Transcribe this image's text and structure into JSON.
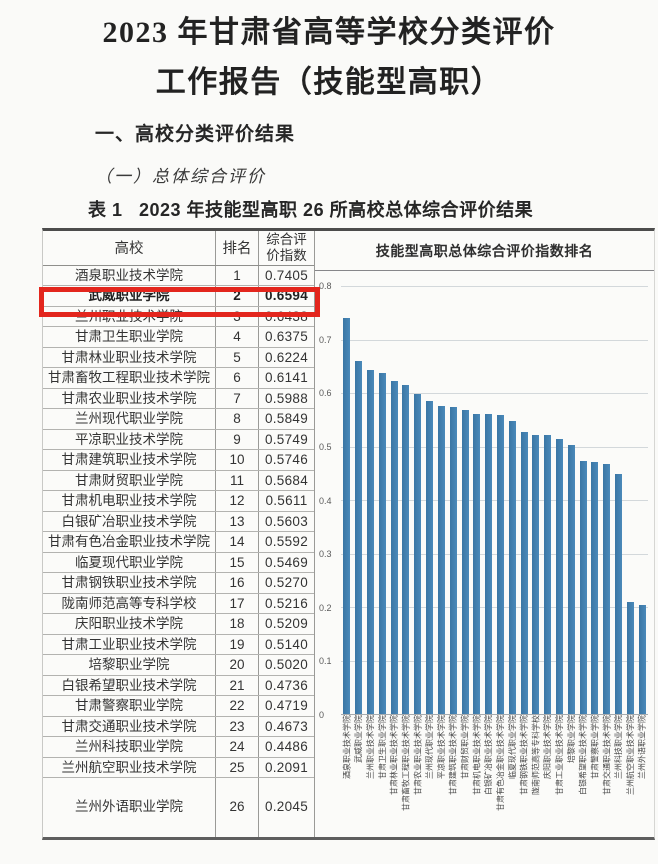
{
  "page": {
    "title_line1": "2023 年甘肃省高等学校分类评价",
    "title_line2": "工作报告（技能型高职）",
    "section_heading": "一、高校分类评价结果",
    "subsection_heading": "（一）总体综合评价",
    "table_caption": "表 1   2023 年技能型高职 26 所高校总体综合评价结果"
  },
  "table": {
    "headers": {
      "college": "高校",
      "rank": "排名",
      "index_line1": "综合评",
      "index_line2": "价指数"
    },
    "highlight_rank": 2,
    "highlight_color": "#e3261d",
    "rows": [
      {
        "college": "酒泉职业技术学院",
        "rank": 1,
        "index": "0.7405"
      },
      {
        "college": "武威职业学院",
        "rank": 2,
        "index": "0.6594"
      },
      {
        "college": "兰州职业技术学院",
        "rank": 3,
        "index": "0.6438"
      },
      {
        "college": "甘肃卫生职业学院",
        "rank": 4,
        "index": "0.6375"
      },
      {
        "college": "甘肃林业职业技术学院",
        "rank": 5,
        "index": "0.6224"
      },
      {
        "college": "甘肃畜牧工程职业技术学院",
        "rank": 6,
        "index": "0.6141"
      },
      {
        "college": "甘肃农业职业技术学院",
        "rank": 7,
        "index": "0.5988"
      },
      {
        "college": "兰州现代职业学院",
        "rank": 8,
        "index": "0.5849"
      },
      {
        "college": "平凉职业技术学院",
        "rank": 9,
        "index": "0.5749"
      },
      {
        "college": "甘肃建筑职业技术学院",
        "rank": 10,
        "index": "0.5746"
      },
      {
        "college": "甘肃财贸职业学院",
        "rank": 11,
        "index": "0.5684"
      },
      {
        "college": "甘肃机电职业技术学院",
        "rank": 12,
        "index": "0.5611"
      },
      {
        "college": "白银矿冶职业技术学院",
        "rank": 13,
        "index": "0.5603"
      },
      {
        "college": "甘肃有色冶金职业技术学院",
        "rank": 14,
        "index": "0.5592"
      },
      {
        "college": "临夏现代职业学院",
        "rank": 15,
        "index": "0.5469"
      },
      {
        "college": "甘肃钢铁职业技术学院",
        "rank": 16,
        "index": "0.5270"
      },
      {
        "college": "陇南师范高等专科学校",
        "rank": 17,
        "index": "0.5216"
      },
      {
        "college": "庆阳职业技术学院",
        "rank": 18,
        "index": "0.5209"
      },
      {
        "college": "甘肃工业职业技术学院",
        "rank": 19,
        "index": "0.5140"
      },
      {
        "college": "培黎职业学院",
        "rank": 20,
        "index": "0.5020"
      },
      {
        "college": "白银希望职业技术学院",
        "rank": 21,
        "index": "0.4736"
      },
      {
        "college": "甘肃警察职业学院",
        "rank": 22,
        "index": "0.4719"
      },
      {
        "college": "甘肃交通职业技术学院",
        "rank": 23,
        "index": "0.4673"
      },
      {
        "college": "兰州科技职业学院",
        "rank": 24,
        "index": "0.4486"
      },
      {
        "college": "兰州航空职业技术学院",
        "rank": 25,
        "index": "0.2091"
      },
      {
        "college": "兰州外语职业学院",
        "rank": 26,
        "index": "0.2045"
      }
    ]
  },
  "chart_data": {
    "type": "bar",
    "title": "技能型高职总体综合评价指数排名",
    "categories": [
      "酒泉职业技术学院",
      "武威职业学院",
      "兰州职业技术学院",
      "甘肃卫生职业学院",
      "甘肃林业职业技术学院",
      "甘肃畜牧工程职业技术学院",
      "甘肃农业职业技术学院",
      "兰州现代职业学院",
      "平凉职业技术学院",
      "甘肃建筑职业技术学院",
      "甘肃财贸职业学院",
      "甘肃机电职业技术学院",
      "白银矿冶职业技术学院",
      "甘肃有色冶金职业技术学院",
      "临夏现代职业学院",
      "甘肃钢铁职业技术学院",
      "陇南师范高等专科学校",
      "庆阳职业技术学院",
      "甘肃工业职业技术学院",
      "培黎职业学院",
      "白银希望职业技术学院",
      "甘肃警察职业学院",
      "甘肃交通职业技术学院",
      "兰州科技职业学院",
      "兰州航空职业技术学院",
      "兰州外语职业学院"
    ],
    "values": [
      0.7405,
      0.6594,
      0.6438,
      0.6375,
      0.6224,
      0.6141,
      0.5988,
      0.5849,
      0.5749,
      0.5746,
      0.5684,
      0.5611,
      0.5603,
      0.5592,
      0.5469,
      0.527,
      0.5216,
      0.5209,
      0.514,
      0.502,
      0.4736,
      0.4719,
      0.4673,
      0.4486,
      0.2091,
      0.2045
    ],
    "xlabel": "",
    "ylabel": "",
    "ylim": [
      0,
      0.8
    ],
    "ytick_labels": [
      "0",
      "0.1",
      "0.2",
      "0.3",
      "0.4",
      "0.5",
      "0.6",
      "0.7",
      "0.8"
    ],
    "grid": true,
    "legend_position": "none",
    "bar_color": "#4384b3"
  }
}
